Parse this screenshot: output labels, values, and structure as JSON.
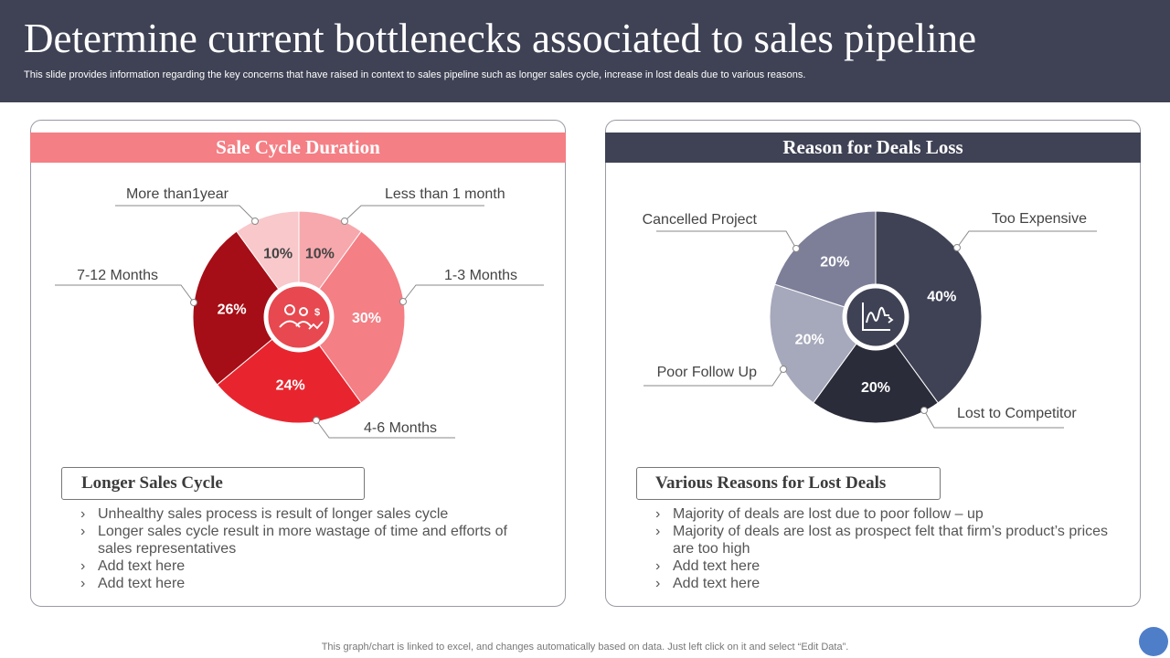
{
  "header": {
    "title": "Determine current bottlenecks associated to sales pipeline",
    "subtitle": "This slide provides information regarding the key concerns that have raised in context to sales pipeline such as longer sales cycle, increase in lost deals due to various reasons."
  },
  "left_panel": {
    "title": "Sale Cycle Duration",
    "center_icon": "people-dollar-icon",
    "subheading": "Longer Sales Cycle",
    "bullets": [
      "Unhealthy  sales process is result  of longer sales cycle",
      "Longer sales cycle result  in more wastage of time and efforts of sales representatives",
      "Add text here",
      "Add text here"
    ]
  },
  "right_panel": {
    "title": "Reason for Deals Loss",
    "center_icon": "chart-trend-icon",
    "subheading": "Various Reasons for Lost Deals",
    "bullets": [
      "Majority of deals are lost due to poor follow – up",
      "Majority of deals are lost as prospect felt that firm’s product’s prices are too high",
      "Add text here",
      "Add text here"
    ]
  },
  "chart_data": [
    {
      "type": "pie",
      "slices": [
        {
          "label": "Less than  1 month",
          "value": 10,
          "value_label": "10%",
          "color": "#f7a8ad"
        },
        {
          "label": "1-3 Months",
          "value": 30,
          "value_label": "30%",
          "color": "#f47f85"
        },
        {
          "label": "4-6 Months",
          "value": 24,
          "value_label": "24%",
          "color": "#e8252f"
        },
        {
          "label": "7-12 Months",
          "value": 26,
          "value_label": "26%",
          "color": "#a50e16"
        },
        {
          "label": "More than1year",
          "value": 10,
          "value_label": "10%",
          "color": "#f8c8cb"
        }
      ]
    },
    {
      "type": "pie",
      "slices": [
        {
          "label": "Too Expensive",
          "value": 40,
          "value_label": "40%",
          "color": "#3f4254"
        },
        {
          "label": "Lost to Competitor",
          "value": 20,
          "value_label": "20%",
          "color": "#2b2c3a"
        },
        {
          "label": "Poor Follow Up",
          "value": 20,
          "value_label": "20%",
          "color": "#a6a8bb"
        },
        {
          "label": "Cancelled Project",
          "value": 20,
          "value_label": "20%",
          "color": "#7d7f99"
        }
      ]
    }
  ],
  "footer": {
    "note": "This graph/chart is linked to excel,  and changes automatically based on data. Just left click on it and select “Edit Data”."
  }
}
